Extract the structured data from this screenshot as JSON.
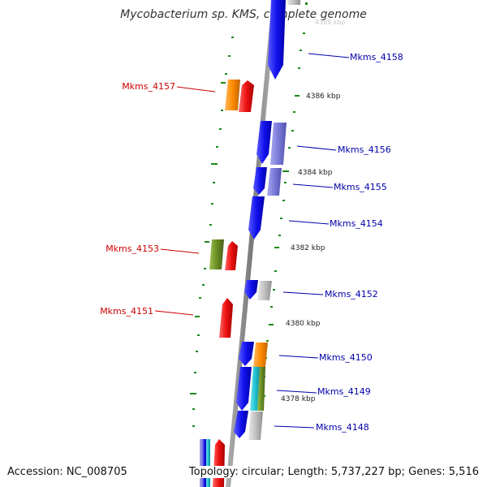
{
  "header": {
    "title": "Mycobacterium sp. KMS, complete genome"
  },
  "footer": {
    "accession": "Accession: NC_008705",
    "topology": "Topology: circular; Length: 5,737,227 bp; Genes: 5,516"
  },
  "colors": {
    "backbone": "#8a8a8a",
    "tick": "#1a8a1a",
    "blue_gene": "#1111ee",
    "light_purple_gene": "#7a7ad8",
    "red_gene": "#ee1111",
    "orange_gene": "#ff8c00",
    "olive_gene": "#6b8e23",
    "cyan_gene": "#20c0d0",
    "grey_gene": "#c0c0c0",
    "right_label": "#0000aa",
    "left_label": "#cc0000"
  },
  "scale_labels": [
    "4386 kbp",
    "4384 kbp",
    "4382 kbp",
    "4380 kbp",
    "4378 kbp"
  ],
  "right_labels": [
    "Mkms_4158",
    "Mkms_4156",
    "Mkms_4155",
    "Mkms_4154",
    "Mkms_4152",
    "Mkms_4150",
    "Mkms_4149",
    "Mkms_4148"
  ],
  "left_labels": [
    "Mkms_4157",
    "Mkms_4153",
    "Mkms_4151"
  ],
  "faded_top_label": "4388 kbp"
}
